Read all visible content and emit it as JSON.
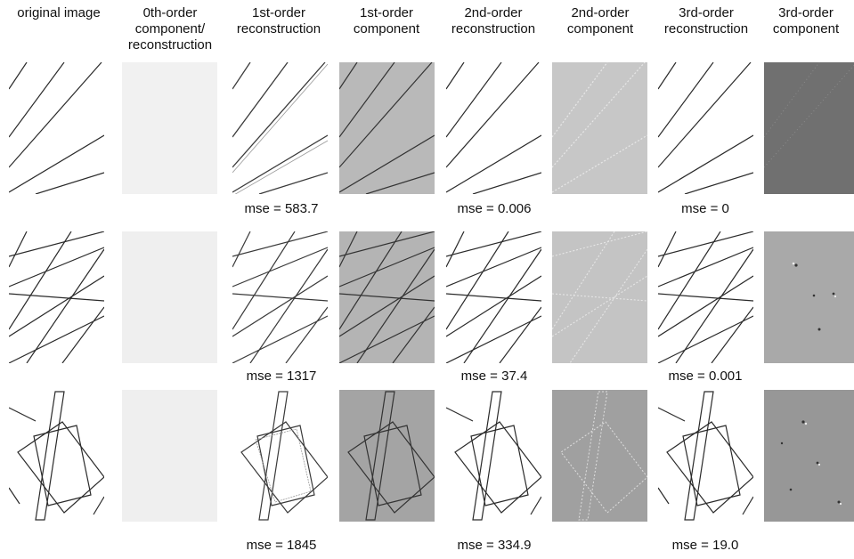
{
  "columns": [
    {
      "title": "original image"
    },
    {
      "title": "0th-order\ncomponent/\nreconstruction"
    },
    {
      "title": "1st-order\nreconstruction"
    },
    {
      "title": "1st-order\ncomponent"
    },
    {
      "title": "2nd-order\nreconstruction"
    },
    {
      "title": "2nd-order\ncomponent"
    },
    {
      "title": "3rd-order\nreconstruction"
    },
    {
      "title": "3rd-order\ncomponent"
    }
  ],
  "rows": [
    {
      "mse": {
        "first": "mse = 583.7",
        "second": "mse = 0.006",
        "third": "mse = 0"
      }
    },
    {
      "mse": {
        "first": "mse = 1317",
        "second": "mse = 37.4",
        "third": "mse = 0.001"
      }
    },
    {
      "mse": {
        "first": "mse = 1845",
        "second": "mse = 334.9",
        "third": "mse = 19.0"
      }
    }
  ],
  "colors": {
    "background": "#ffffff",
    "zeroth": "#f1f1f1",
    "first_component": "#b9b9b9",
    "second_component": "#c7c7c7",
    "third_component_row1": "#707070",
    "third_component_row2": "#a9a9a9",
    "third_component_row3": "#979797",
    "line": "#2a2a2a"
  }
}
